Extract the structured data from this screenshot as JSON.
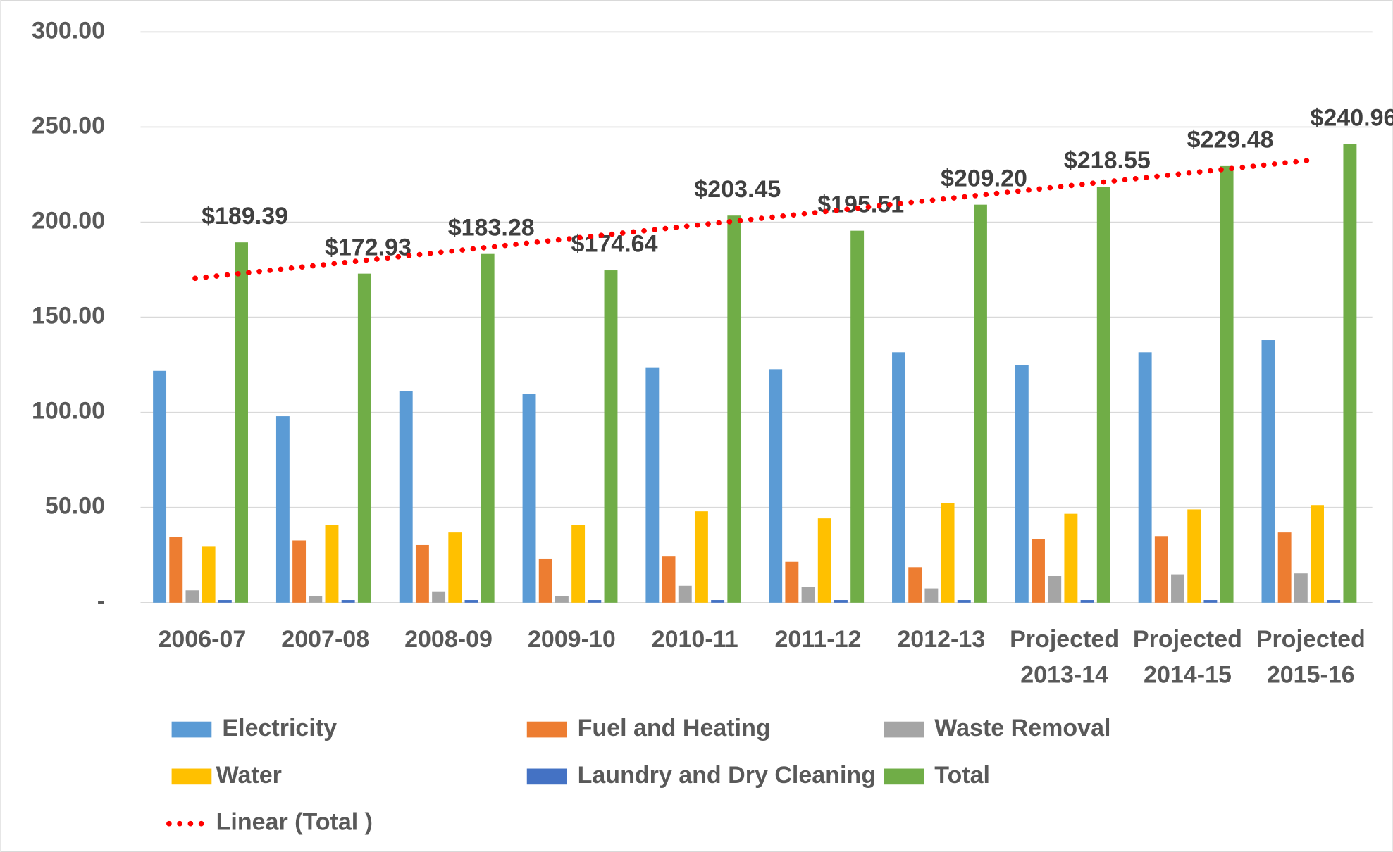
{
  "chart_data": {
    "type": "bar",
    "categories": [
      "2006-07",
      "2007-08",
      "2008-09",
      "2009-10",
      "2010-11",
      "2011-12",
      "2012-13",
      "Projected 2013-14",
      "Projected 2014-15",
      "Projected 2015-16"
    ],
    "series": [
      {
        "name": "Electricity",
        "color": "#5b9bd5",
        "values": [
          121.8,
          98,
          111,
          109.7,
          123.7,
          122.7,
          131.6,
          125,
          131.6,
          138
        ]
      },
      {
        "name": "Fuel and Heating",
        "color": "#ed7d31",
        "values": [
          34.5,
          32.7,
          30.3,
          22.9,
          24.3,
          21.5,
          18.7,
          33.6,
          35,
          36.9
        ]
      },
      {
        "name": "Waste Removal",
        "color": "#a5a5a5",
        "values": [
          6.5,
          3.3,
          5.6,
          3.3,
          8.9,
          8.4,
          7.5,
          14,
          14.9,
          15.4
        ]
      },
      {
        "name": "Water",
        "color": "#ffc000",
        "values": [
          29.4,
          41,
          36.9,
          41,
          48,
          44.3,
          52.3,
          46.7,
          49,
          51.3
        ]
      },
      {
        "name": "Laundry and Dry Cleaning",
        "color": "#4472c4",
        "values": [
          1.4,
          1.4,
          1.4,
          1.4,
          1.4,
          1.4,
          1.4,
          1.4,
          1.4,
          1.4
        ]
      },
      {
        "name": "Total",
        "color": "#70ad47",
        "values": [
          189.39,
          172.93,
          183.28,
          174.64,
          203.45,
          195.51,
          209.2,
          218.55,
          229.48,
          240.96
        ],
        "value_labels": [
          "$189.39",
          "$172.93",
          "$183.28",
          "$174.64",
          "$203.45",
          "$195.51",
          "$209.20",
          "$218.55",
          "$229.48",
          "$240.96"
        ]
      }
    ],
    "trendline": {
      "name": "Linear (Total )",
      "color": "#ff0000",
      "of_series": 5
    },
    "ylim": [
      0,
      300
    ],
    "yticks": [
      {
        "value": 0,
        "label": "-"
      },
      {
        "value": 50,
        "label": "50.00"
      },
      {
        "value": 100,
        "label": "100.00"
      },
      {
        "value": 150,
        "label": "150.00"
      },
      {
        "value": 200,
        "label": "200.00"
      },
      {
        "value": 250,
        "label": "250.00"
      },
      {
        "value": 300,
        "label": "300.00"
      }
    ],
    "grid": true
  }
}
